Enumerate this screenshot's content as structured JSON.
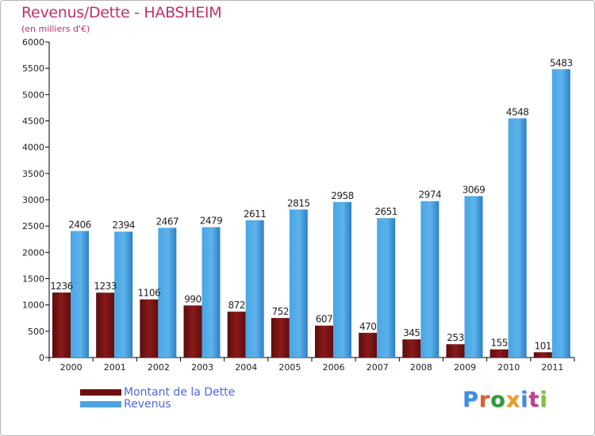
{
  "title": "Revenus/Dette - HABSHEIM",
  "subtitle": "(en milliers d'€)",
  "logo": {
    "text": "Proxiti",
    "colors": [
      "#3a8ee6",
      "#e8592c",
      "#2e9b3a",
      "#e8a023",
      "#3a8ee6",
      "#c43d8c",
      "#7cc142"
    ]
  },
  "chart_data": {
    "type": "bar",
    "categories": [
      "2000",
      "2001",
      "2002",
      "2003",
      "2004",
      "2005",
      "2006",
      "2007",
      "2008",
      "2009",
      "2010",
      "2011"
    ],
    "series": [
      {
        "name": "Montant de la Dette",
        "color": "#7a1515",
        "values": [
          1236,
          1233,
          1106,
          990,
          872,
          752,
          607,
          470,
          345,
          253,
          155,
          101
        ],
        "labels": [
          "1236",
          "1233",
          "1106",
          "990",
          "872",
          "752",
          "607",
          "470",
          "345",
          "253",
          "155",
          "101"
        ]
      },
      {
        "name": "Revenus",
        "color": "#3d99dc",
        "values": [
          2406,
          2394,
          2467,
          2479,
          2611,
          2815,
          2958,
          2651,
          2974,
          3069,
          4548,
          5483
        ],
        "labels": [
          "2406",
          "2394",
          "2467",
          "2479",
          "2611",
          "2815",
          "2958",
          "2651",
          "2974",
          "3069",
          "4548",
          "5483"
        ]
      }
    ],
    "ylim": [
      0,
      6000
    ],
    "yticks": [
      0,
      500,
      1000,
      1500,
      2000,
      2500,
      3000,
      3500,
      4000,
      4500,
      5000,
      5500,
      6000
    ],
    "grid": false,
    "legend_position": "bottom-left"
  }
}
